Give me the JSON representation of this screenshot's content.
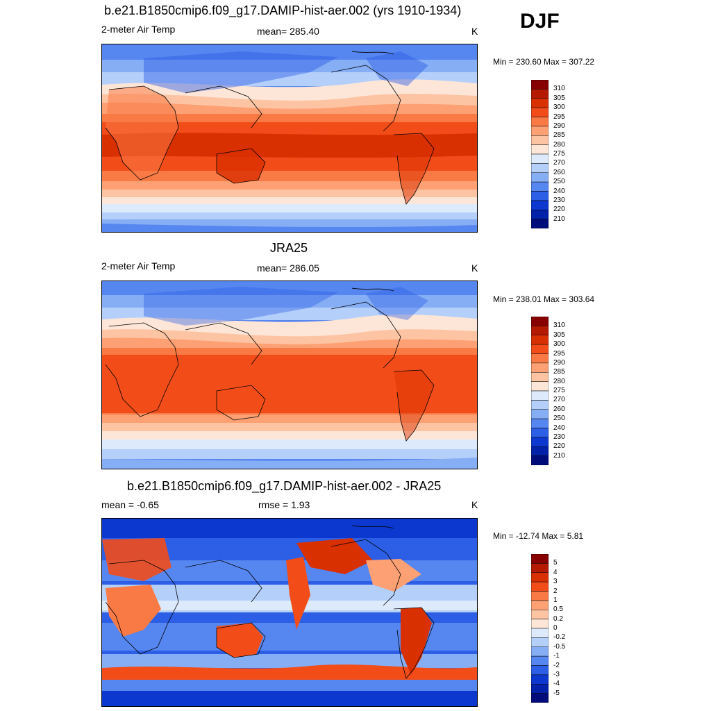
{
  "season": "DJF",
  "panels": [
    {
      "title": "b.e21.B1850cmip6.f09_g17.DAMIP-hist-aer.002 (yrs 1910-1934)",
      "left_label": "2-meter Air Temp",
      "center_label": "mean= 285.40",
      "units": "K",
      "minmax": "Min = 230.60 Max = 307.22",
      "colorbar_labels": [
        "310",
        "305",
        "300",
        "295",
        "290",
        "285",
        "280",
        "275",
        "270",
        "260",
        "250",
        "240",
        "230",
        "220",
        "210"
      ],
      "colorbar_colors": [
        "#870000",
        "#b31a00",
        "#d93000",
        "#f24d19",
        "#fa7a45",
        "#fda074",
        "#fdc4a3",
        "#fde6d8",
        "#dceafb",
        "#b4cffa",
        "#86aef5",
        "#5686ef",
        "#2c5ee6",
        "#0c38cf",
        "#0021a8",
        "#000c7a"
      ]
    },
    {
      "title": "JRA25",
      "left_label": "2-meter Air Temp",
      "center_label": "mean= 286.05",
      "units": "K",
      "minmax": "Min = 238.01 Max = 303.64",
      "colorbar_labels": [
        "310",
        "305",
        "300",
        "295",
        "290",
        "285",
        "280",
        "275",
        "270",
        "260",
        "250",
        "240",
        "230",
        "220",
        "210"
      ],
      "colorbar_colors": [
        "#870000",
        "#b31a00",
        "#d93000",
        "#f24d19",
        "#fa7a45",
        "#fda074",
        "#fdc4a3",
        "#fde6d8",
        "#dceafb",
        "#b4cffa",
        "#86aef5",
        "#5686ef",
        "#2c5ee6",
        "#0c38cf",
        "#0021a8",
        "#000c7a"
      ]
    },
    {
      "title": "b.e21.B1850cmip6.f09_g17.DAMIP-hist-aer.002 - JRA25",
      "left_label": "mean =  -0.65",
      "center_label": "rmse =   1.93",
      "units": "K",
      "minmax": "Min = -12.74 Max =   5.81",
      "colorbar_labels": [
        "5",
        "4",
        "3",
        "2",
        "1",
        "0.5",
        "0.2",
        "0",
        "-0.2",
        "-0.5",
        "-1",
        "-2",
        "-3",
        "-4",
        "-5"
      ],
      "colorbar_colors": [
        "#870000",
        "#b31a00",
        "#d93000",
        "#f24d19",
        "#fa7a45",
        "#fda074",
        "#fdc4a3",
        "#fde6d8",
        "#dceafb",
        "#b4cffa",
        "#86aef5",
        "#5686ef",
        "#2c5ee6",
        "#0c38cf",
        "#0021a8",
        "#000c7a"
      ]
    }
  ]
}
